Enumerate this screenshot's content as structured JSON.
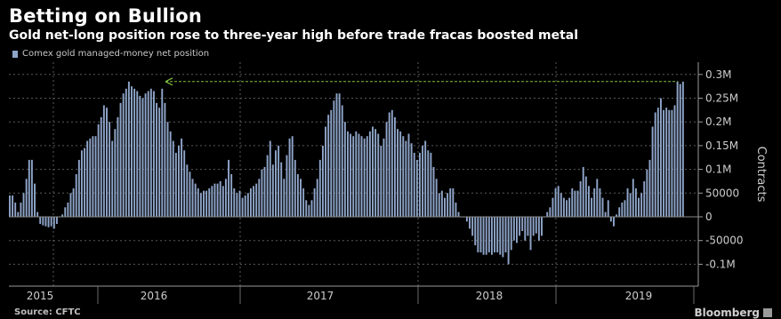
{
  "title": "Betting on Bullion",
  "subtitle": "Gold net-long position rose to three-year high before trade fracas boosted metal",
  "source": "Source: CFTC",
  "brand": "Bloomberg",
  "colors": {
    "background": "#000000",
    "bar": "#8ea4c8",
    "grid": "#5a5a5a",
    "axis_text": "#cccccc",
    "annotation_arrow": "#7fbf3f"
  },
  "chart_data": {
    "type": "bar",
    "title": "Betting on Bullion",
    "subtitle": "Gold net-long position rose to three-year high before trade fracas boosted metal",
    "legend": {
      "position": "top-left",
      "entries": [
        "Comex gold managed-money net position"
      ]
    },
    "series": [
      {
        "name": "Comex gold managed-money net position",
        "color": "#8ea4c8"
      }
    ],
    "ylabel": "Contracts",
    "ylim": [
      -150000,
      320000
    ],
    "y_ticks": [
      300000,
      250000,
      200000,
      150000,
      100000,
      50000,
      0,
      -50000,
      -100000
    ],
    "y_tick_labels": [
      "0.3M",
      "0.25M",
      "0.2M",
      "0.15M",
      "0.1M",
      "50000",
      "0",
      "-50000",
      "-0.1M"
    ],
    "grid": true,
    "x_axis": {
      "years": [
        "2015",
        "2016",
        "2017",
        "2018",
        "2019"
      ]
    },
    "values": [
      45000,
      45000,
      30000,
      10000,
      30000,
      50000,
      80000,
      120000,
      120000,
      70000,
      10000,
      -15000,
      -18000,
      -20000,
      -22000,
      -20000,
      -25000,
      -15000,
      0,
      5000,
      20000,
      30000,
      50000,
      60000,
      90000,
      120000,
      140000,
      145000,
      160000,
      165000,
      170000,
      170000,
      195000,
      210000,
      235000,
      230000,
      200000,
      160000,
      185000,
      210000,
      240000,
      260000,
      270000,
      285000,
      275000,
      270000,
      265000,
      255000,
      250000,
      260000,
      265000,
      270000,
      265000,
      240000,
      230000,
      270000,
      240000,
      200000,
      180000,
      160000,
      135000,
      150000,
      165000,
      140000,
      110000,
      95000,
      80000,
      70000,
      60000,
      50000,
      55000,
      55000,
      60000,
      65000,
      70000,
      70000,
      75000,
      65000,
      80000,
      120000,
      90000,
      60000,
      50000,
      55000,
      40000,
      45000,
      50000,
      60000,
      65000,
      70000,
      80000,
      100000,
      105000,
      130000,
      160000,
      110000,
      140000,
      150000,
      115000,
      80000,
      130000,
      165000,
      170000,
      120000,
      90000,
      80000,
      60000,
      35000,
      25000,
      35000,
      60000,
      80000,
      120000,
      150000,
      190000,
      215000,
      225000,
      245000,
      260000,
      260000,
      235000,
      200000,
      180000,
      175000,
      170000,
      180000,
      175000,
      170000,
      165000,
      170000,
      180000,
      190000,
      185000,
      175000,
      150000,
      165000,
      200000,
      220000,
      225000,
      210000,
      185000,
      180000,
      170000,
      160000,
      175000,
      155000,
      135000,
      120000,
      135000,
      150000,
      160000,
      140000,
      135000,
      105000,
      80000,
      50000,
      55000,
      40000,
      50000,
      60000,
      60000,
      30000,
      10000,
      0,
      0,
      -10000,
      -25000,
      -40000,
      -60000,
      -75000,
      -75000,
      -80000,
      -80000,
      -75000,
      -80000,
      -75000,
      -75000,
      -80000,
      -85000,
      -75000,
      -100000,
      -70000,
      -50000,
      -55000,
      -40000,
      -30000,
      -50000,
      -40000,
      -70000,
      -40000,
      -35000,
      -50000,
      -40000,
      0,
      10000,
      20000,
      40000,
      60000,
      65000,
      50000,
      40000,
      35000,
      40000,
      60000,
      55000,
      55000,
      75000,
      105000,
      85000,
      65000,
      40000,
      60000,
      80000,
      60000,
      40000,
      10000,
      35000,
      -10000,
      -20000,
      5000,
      20000,
      30000,
      35000,
      60000,
      50000,
      80000,
      60000,
      40000,
      50000,
      75000,
      100000,
      120000,
      190000,
      220000,
      230000,
      250000,
      225000,
      230000,
      225000,
      225000,
      235000,
      285000,
      280000,
      285000
    ]
  },
  "arrow_annotation": {
    "description": "dashed arrow marking the three-year high",
    "value": 285000
  }
}
